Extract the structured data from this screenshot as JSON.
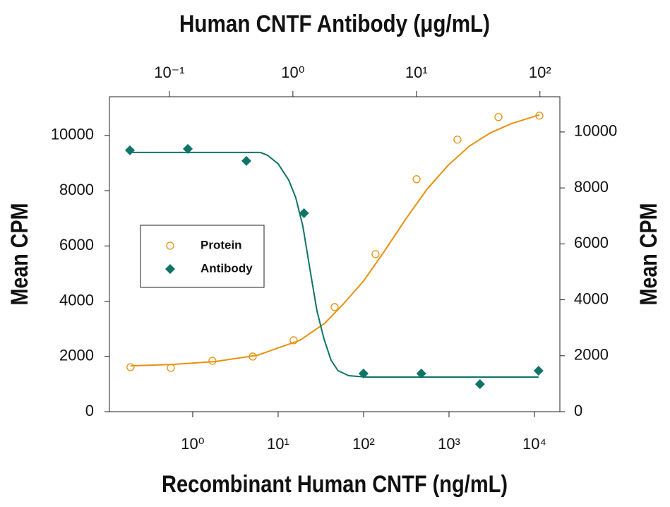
{
  "chart_data": {
    "type": "scatter",
    "x2label": "Human CNTF Antibody (μg/mL)",
    "xlabel": "Recombinant Human CNTF (ng/mL)",
    "ylabel": "Mean CPM",
    "y2label": "Mean CPM",
    "xscale": "log",
    "x2scale": "log",
    "xlim": [
      0.106,
      19840
    ],
    "xticks": [
      {
        "value": 1,
        "label": "10⁰"
      },
      {
        "value": 10,
        "label": "10¹"
      },
      {
        "value": 100,
        "label": "10²"
      },
      {
        "value": 1000,
        "label": "10³"
      },
      {
        "value": 10000,
        "label": "10⁴"
      }
    ],
    "x2lim": [
      0.0327,
      145
    ],
    "x2ticks": [
      {
        "value": 0.1,
        "label": "10⁻¹"
      },
      {
        "value": 1,
        "label": "10⁰"
      },
      {
        "value": 10,
        "label": "10¹"
      },
      {
        "value": 100,
        "label": "10²"
      }
    ],
    "ylim": [
      0,
      11400
    ],
    "yticks": [
      0,
      2000,
      4000,
      6000,
      8000,
      10000
    ],
    "y2lim": [
      0,
      11260
    ],
    "y2ticks": [
      0,
      2000,
      4000,
      6000,
      8000,
      10000
    ],
    "legend": "center-left",
    "series": [
      {
        "name": "Protein",
        "color": "#e8900c",
        "marker": "circle",
        "x": [
          0.187,
          0.554,
          1.7,
          5.04,
          15.2,
          45.8,
          138,
          417,
          1256,
          3790,
          11430
        ],
        "values": [
          1611,
          1586,
          1841,
          1995,
          2583,
          3785,
          5703,
          8414,
          9847,
          10665,
          10716
        ]
      },
      {
        "name": "Antibody",
        "color": "#0f7468",
        "marker": "diamond",
        "axis": "y2",
        "xaxis": "x2",
        "x": [
          0.0479,
          0.141,
          0.42,
          1.23,
          3.73,
          10.96,
          32.7,
          97.5
        ],
        "values": [
          9343,
          9394,
          8965,
          7096,
          1364,
          1364,
          985,
          1465
        ]
      }
    ],
    "fits": [
      {
        "color": "#e8900c",
        "x": [
          0.187,
          0.587,
          1.84,
          5.76,
          18.0,
          35.1,
          56.5,
          100,
          177,
          313,
          555,
          982,
          1738,
          3076,
          5445,
          11430
        ],
        "values": [
          1660,
          1710,
          1815,
          2046,
          2583,
          3200,
          3860,
          4730,
          5830,
          6980,
          8056,
          8926,
          9616,
          10100,
          10435,
          10742
        ]
      },
      {
        "color": "#0f7468",
        "axis": "y2",
        "xaxis": "x2",
        "x": [
          0.0479,
          0.217,
          0.546,
          0.623,
          0.759,
          0.924,
          1.054,
          1.202,
          1.371,
          1.564,
          1.784,
          2.035,
          2.32,
          2.83,
          3.93,
          11.26,
          97.5
        ],
        "values": [
          9268,
          9268,
          9268,
          9167,
          8864,
          8283,
          7652,
          6641,
          5126,
          3611,
          2601,
          1843,
          1465,
          1288,
          1237,
          1237,
          1237
        ]
      }
    ]
  }
}
